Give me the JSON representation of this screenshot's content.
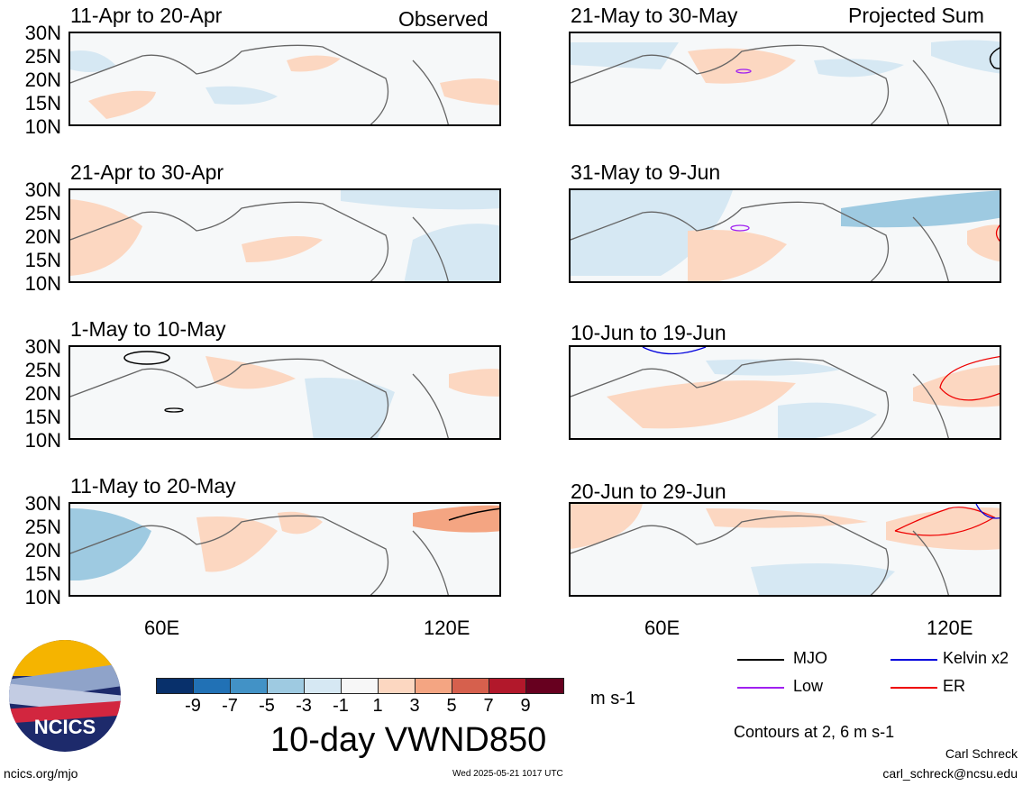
{
  "header": {
    "left_tag": "Observed",
    "right_tag": "Projected Sum"
  },
  "panels": [
    {
      "label": "11-Apr to 20-Apr"
    },
    {
      "label": "21-Apr to 30-Apr"
    },
    {
      "label": "1-May to 10-May"
    },
    {
      "label": "11-May to 20-May"
    },
    {
      "label": "21-May to 30-May"
    },
    {
      "label": "31-May to 9-Jun"
    },
    {
      "label": "10-Jun to 19-Jun"
    },
    {
      "label": "20-Jun to 29-Jun"
    }
  ],
  "axes": {
    "lat_ticks": [
      "30N",
      "25N",
      "20N",
      "15N",
      "10N"
    ],
    "lon_ticks": [
      "60E",
      "120E"
    ]
  },
  "colorbar": {
    "tick_labels": [
      "-9",
      "-7",
      "-5",
      "-3",
      "-1",
      "1",
      "3",
      "5",
      "7",
      "9"
    ],
    "colors": [
      "#08306b",
      "#2171b5",
      "#4292c6",
      "#9ecae1",
      "#d6e8f3",
      "#f7f7f7",
      "#fcd7c1",
      "#f4a582",
      "#d6604d",
      "#b2182b",
      "#a50f15",
      "#67001f"
    ],
    "units": "m s-1",
    "title": "10-day VWND850"
  },
  "legend": {
    "items": [
      {
        "label": "MJO",
        "color": "#000000"
      },
      {
        "label": "Kelvin x2",
        "color": "#0000dd"
      },
      {
        "label": "Low",
        "color": "#a020f0"
      },
      {
        "label": "ER",
        "color": "#ee0000"
      }
    ],
    "note": "Contours at 2, 6 m s-1"
  },
  "footer": {
    "logo_text": "NCICS",
    "url": "ncics.org/mjo",
    "timestamp": "Wed 2025-05-21 1017 UTC",
    "author": "Carl Schreck",
    "email": "carl_schreck@ncsu.edu"
  }
}
